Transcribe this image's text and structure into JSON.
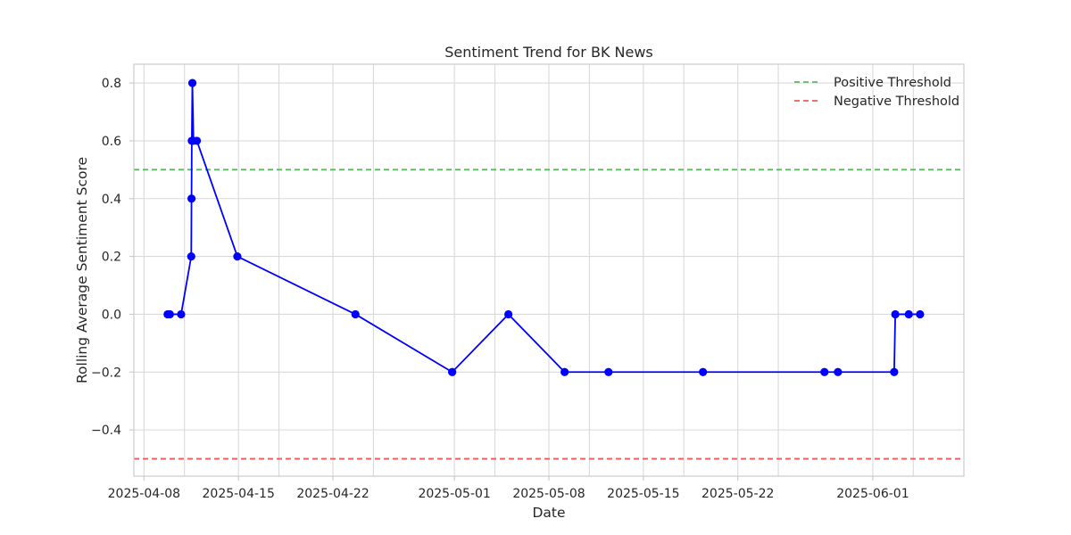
{
  "chart_data": {
    "type": "line",
    "title": "Sentiment Trend for BK News",
    "xlabel": "Date",
    "ylabel": "Rolling Average Sentiment Score",
    "xlim": [
      "2025-04-07T06:00",
      "2025-06-07T18:00"
    ],
    "ylim": [
      -0.56,
      0.865
    ],
    "grid": true,
    "legend_position": "top-right",
    "x_ticks": [
      {
        "date": "2025-04-08",
        "label": "2025-04-08"
      },
      {
        "date": "2025-04-15",
        "label": "2025-04-15"
      },
      {
        "date": "2025-04-22",
        "label": "2025-04-22"
      },
      {
        "date": "2025-05-01",
        "label": "2025-05-01"
      },
      {
        "date": "2025-05-08",
        "label": "2025-05-08"
      },
      {
        "date": "2025-05-15",
        "label": "2025-05-15"
      },
      {
        "date": "2025-05-22",
        "label": "2025-05-22"
      },
      {
        "date": "2025-06-01",
        "label": "2025-06-01"
      }
    ],
    "extra_x_gridlines": [
      "2025-04-11T00:00",
      "2025-04-18T00:00",
      "2025-04-25T00:00",
      "2025-05-04T00:00",
      "2025-05-11T00:00",
      "2025-05-18T00:00",
      "2025-05-25T00:00",
      "2025-06-04T00:00"
    ],
    "y_ticks": [
      {
        "value": 0.8,
        "label": "0.8"
      },
      {
        "value": 0.6,
        "label": "0.6"
      },
      {
        "value": 0.4,
        "label": "0.4"
      },
      {
        "value": 0.2,
        "label": "0.2"
      },
      {
        "value": 0.0,
        "label": "0.0"
      },
      {
        "value": -0.2,
        "label": "−0.2"
      },
      {
        "value": -0.4,
        "label": "−0.4"
      }
    ],
    "series": [
      {
        "name": "Rolling Average Sentiment",
        "color": "#0000ff",
        "points": [
          {
            "x": "2025-04-09T18:00",
            "y": 0.0
          },
          {
            "x": "2025-04-09T22:00",
            "y": 0.0
          },
          {
            "x": "2025-04-10T18:00",
            "y": 0.0
          },
          {
            "x": "2025-04-11T12:00",
            "y": 0.2
          },
          {
            "x": "2025-04-11T12:30",
            "y": 0.4
          },
          {
            "x": "2025-04-11T13:00",
            "y": 0.6
          },
          {
            "x": "2025-04-11T14:00",
            "y": 0.8
          },
          {
            "x": "2025-04-11T16:00",
            "y": 0.6
          },
          {
            "x": "2025-04-11T22:00",
            "y": 0.6
          },
          {
            "x": "2025-04-14T22:00",
            "y": 0.2
          },
          {
            "x": "2025-04-23T16:00",
            "y": 0.0
          },
          {
            "x": "2025-04-30T20:00",
            "y": -0.2
          },
          {
            "x": "2025-05-05T00:00",
            "y": 0.0
          },
          {
            "x": "2025-05-09T04:00",
            "y": -0.2
          },
          {
            "x": "2025-05-12T10:00",
            "y": -0.2
          },
          {
            "x": "2025-05-19T10:00",
            "y": -0.2
          },
          {
            "x": "2025-05-28T10:00",
            "y": -0.2
          },
          {
            "x": "2025-05-29T10:00",
            "y": -0.2
          },
          {
            "x": "2025-06-02T14:00",
            "y": -0.2
          },
          {
            "x": "2025-06-02T16:00",
            "y": 0.0
          },
          {
            "x": "2025-06-03T16:00",
            "y": 0.0
          },
          {
            "x": "2025-06-04T12:00",
            "y": 0.0
          }
        ]
      }
    ],
    "thresholds": [
      {
        "name": "Positive Threshold",
        "value": 0.5,
        "color": "#5cb85c"
      },
      {
        "name": "Negative Threshold",
        "value": -0.5,
        "color": "#f05a5a"
      }
    ]
  }
}
